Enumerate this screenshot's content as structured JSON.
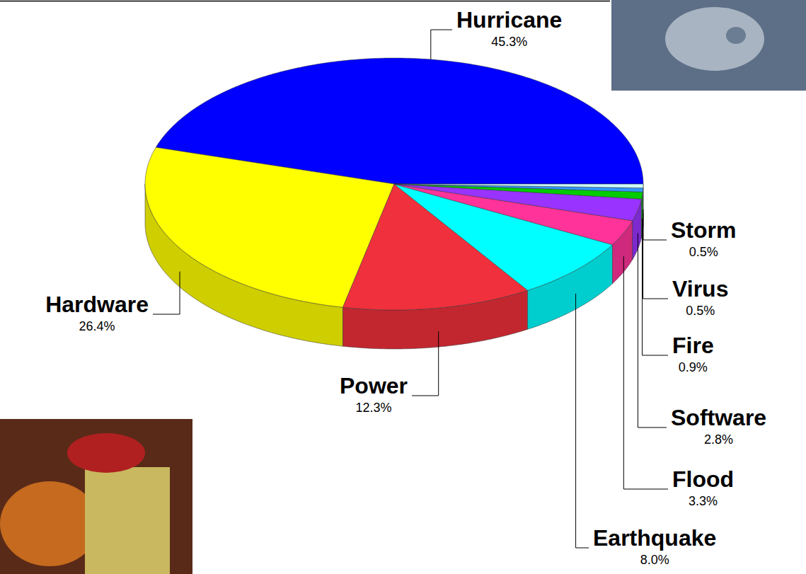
{
  "chart_data": {
    "type": "pie",
    "categories": [
      "Hurricane",
      "Hardware",
      "Power",
      "Earthquake",
      "Flood",
      "Software",
      "Fire",
      "Virus",
      "Storm"
    ],
    "values": [
      45.3,
      26.4,
      12.3,
      8.0,
      3.3,
      2.8,
      0.9,
      0.5,
      0.5
    ],
    "value_labels": [
      "45.3%",
      "26.4%",
      "12.3%",
      "8.0%",
      "3.3%",
      "2.8%",
      "0.9%",
      "0.5%",
      "0.5%"
    ],
    "colors": [
      "#0000ff",
      "#ffff00",
      "#f0303c",
      "#00ffff",
      "#ff3399",
      "#9933ff",
      "#00cc00",
      "#3399ff",
      "#ccffff"
    ],
    "data_labels": true
  }
}
